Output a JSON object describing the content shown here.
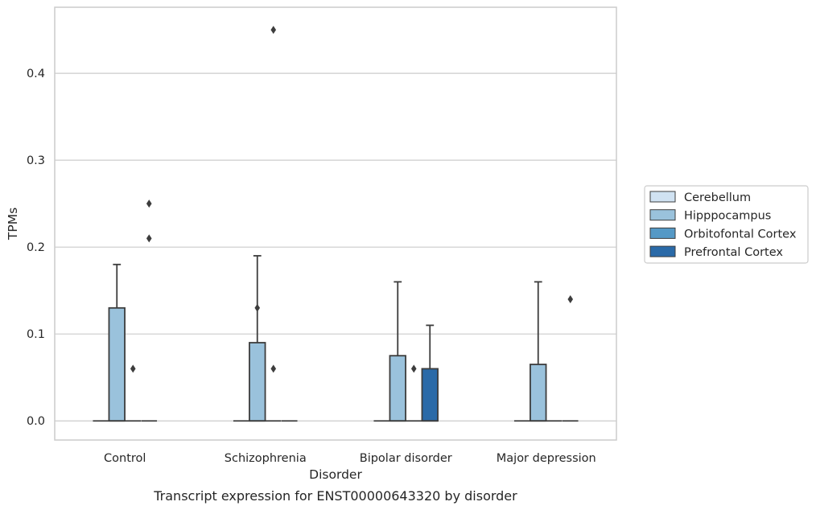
{
  "chart_data": {
    "type": "box",
    "caption": "Transcript expression for ENST00000643320 by disorder",
    "xlabel": "Disorder",
    "ylabel": "TPMs",
    "ylim": [
      -0.022,
      0.476
    ],
    "yticks": [
      0.0,
      0.1,
      0.2,
      0.3,
      0.4
    ],
    "ytick_labels": [
      "0.0",
      "0.1",
      "0.2",
      "0.3",
      "0.4"
    ],
    "grid": true,
    "legend_position": "right",
    "categories": [
      "Control",
      "Schizophrenia",
      "Bipolar disorder",
      "Major depression"
    ],
    "series": [
      {
        "name": "Cerebellum",
        "color": "#d0e2f2",
        "boxes": [
          {
            "q1": 0,
            "median": 0,
            "q3": 0,
            "whisker_low": 0,
            "whisker_high": 0,
            "outliers": []
          },
          {
            "q1": 0,
            "median": 0,
            "q3": 0,
            "whisker_low": 0,
            "whisker_high": 0,
            "outliers": []
          },
          {
            "q1": 0,
            "median": 0,
            "q3": 0,
            "whisker_low": 0,
            "whisker_high": 0,
            "outliers": []
          },
          {
            "q1": 0,
            "median": 0,
            "q3": 0,
            "whisker_low": 0,
            "whisker_high": 0,
            "outliers": []
          }
        ]
      },
      {
        "name": "Hipppocampus",
        "color": "#9ac2dc",
        "boxes": [
          {
            "q1": 0,
            "median": 0,
            "q3": 0.13,
            "whisker_low": 0,
            "whisker_high": 0.18,
            "outliers": []
          },
          {
            "q1": 0,
            "median": 0,
            "q3": 0.09,
            "whisker_low": 0,
            "whisker_high": 0.19,
            "outliers": [
              0.13
            ]
          },
          {
            "q1": 0,
            "median": 0,
            "q3": 0.075,
            "whisker_low": 0,
            "whisker_high": 0.16,
            "outliers": []
          },
          {
            "q1": 0,
            "median": 0,
            "q3": 0.065,
            "whisker_low": 0,
            "whisker_high": 0.16,
            "outliers": []
          }
        ]
      },
      {
        "name": "Orbitofontal Cortex",
        "color": "#5599c6",
        "boxes": [
          {
            "q1": 0,
            "median": 0,
            "q3": 0,
            "whisker_low": 0,
            "whisker_high": 0,
            "outliers": [
              0.06
            ]
          },
          {
            "q1": 0,
            "median": 0,
            "q3": 0,
            "whisker_low": 0,
            "whisker_high": 0,
            "outliers": [
              0.06,
              0.45
            ]
          },
          {
            "q1": 0,
            "median": 0,
            "q3": 0,
            "whisker_low": 0,
            "whisker_high": 0,
            "outliers": [
              0.06
            ]
          },
          {
            "q1": 0,
            "median": 0,
            "q3": 0,
            "whisker_low": 0,
            "whisker_high": 0,
            "outliers": []
          }
        ]
      },
      {
        "name": "Prefrontal Cortex",
        "color": "#2a6aa8",
        "boxes": [
          {
            "q1": 0,
            "median": 0,
            "q3": 0,
            "whisker_low": 0,
            "whisker_high": 0,
            "outliers": [
              0.21,
              0.25
            ]
          },
          {
            "q1": 0,
            "median": 0,
            "q3": 0,
            "whisker_low": 0,
            "whisker_high": 0,
            "outliers": []
          },
          {
            "q1": 0,
            "median": 0,
            "q3": 0.06,
            "whisker_low": 0,
            "whisker_high": 0.11,
            "outliers": []
          },
          {
            "q1": 0,
            "median": 0,
            "q3": 0,
            "whisker_low": 0,
            "whisker_high": 0,
            "outliers": [
              0.14
            ]
          }
        ]
      }
    ]
  }
}
